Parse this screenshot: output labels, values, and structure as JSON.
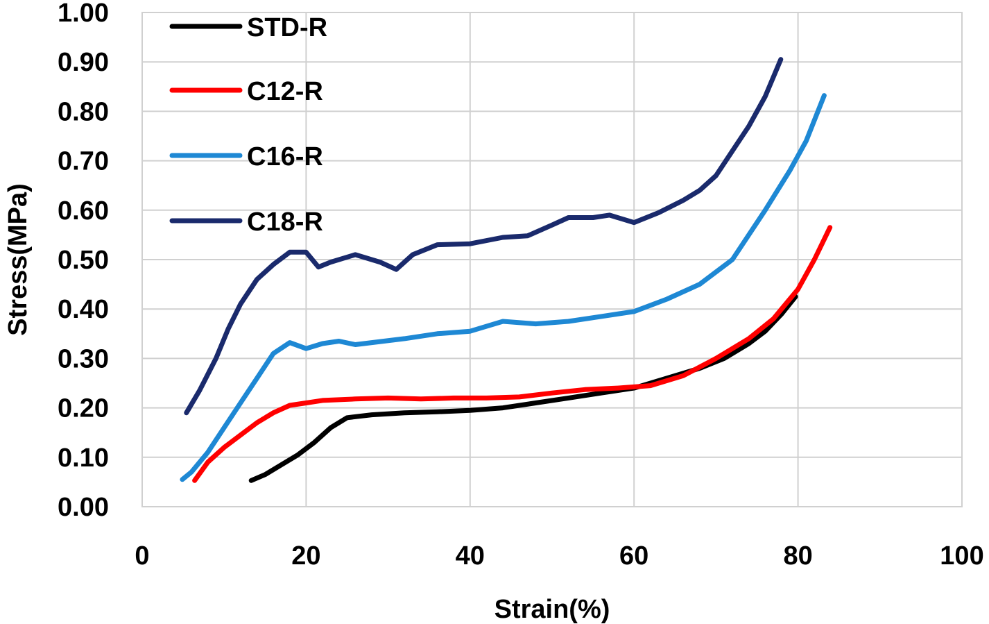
{
  "chart_data": {
    "type": "line",
    "title": "",
    "xlabel": "Strain(%)",
    "ylabel": "Stress(MPa)",
    "xlim": [
      0,
      100
    ],
    "ylim": [
      0,
      1.0
    ],
    "xticks": [
      0,
      20,
      40,
      60,
      80,
      100
    ],
    "xtick_labels": [
      "0",
      "20",
      "40",
      "60",
      "80",
      "100"
    ],
    "yticks": [
      0,
      0.1,
      0.2,
      0.3,
      0.4,
      0.5,
      0.6,
      0.7,
      0.8,
      0.9,
      1.0
    ],
    "ytick_labels": [
      "0.00",
      "0.10",
      "0.20",
      "0.30",
      "0.40",
      "0.50",
      "0.60",
      "0.70",
      "0.80",
      "0.90",
      "1.00"
    ],
    "grid": true,
    "legend_position": "top-left",
    "series": [
      {
        "name": "STD-R",
        "color": "#000000",
        "x": [
          13.3,
          15,
          17,
          19,
          21,
          23,
          25,
          28,
          32,
          36,
          40,
          44,
          48,
          52,
          56,
          60,
          64,
          68,
          71,
          74,
          76,
          78,
          79.7
        ],
        "y": [
          0.053,
          0.065,
          0.085,
          0.105,
          0.13,
          0.16,
          0.18,
          0.186,
          0.19,
          0.192,
          0.195,
          0.2,
          0.21,
          0.22,
          0.23,
          0.24,
          0.26,
          0.28,
          0.3,
          0.33,
          0.355,
          0.39,
          0.425
        ]
      },
      {
        "name": "C12-R",
        "color": "#ff0000",
        "x": [
          6.4,
          8,
          10,
          12,
          14,
          16,
          18,
          20,
          22,
          26,
          30,
          34,
          38,
          42,
          46,
          50,
          54,
          58,
          62,
          66,
          70,
          74,
          77,
          80,
          82,
          83.9
        ],
        "y": [
          0.053,
          0.09,
          0.12,
          0.145,
          0.17,
          0.19,
          0.205,
          0.21,
          0.215,
          0.218,
          0.22,
          0.218,
          0.22,
          0.22,
          0.222,
          0.23,
          0.237,
          0.24,
          0.245,
          0.265,
          0.3,
          0.34,
          0.38,
          0.44,
          0.5,
          0.565
        ]
      },
      {
        "name": "C16-R",
        "color": "#1e88d4",
        "x": [
          4.9,
          6,
          8,
          10,
          12,
          14,
          16,
          18,
          20,
          22,
          24,
          26,
          28,
          32,
          36,
          40,
          44,
          48,
          52,
          56,
          60,
          64,
          68,
          72,
          76,
          79,
          81,
          83.2
        ],
        "y": [
          0.055,
          0.07,
          0.11,
          0.16,
          0.21,
          0.26,
          0.31,
          0.332,
          0.32,
          0.33,
          0.335,
          0.328,
          0.332,
          0.34,
          0.35,
          0.355,
          0.375,
          0.37,
          0.375,
          0.385,
          0.395,
          0.42,
          0.45,
          0.5,
          0.6,
          0.68,
          0.74,
          0.832
        ]
      },
      {
        "name": "C18-R",
        "color": "#1a2a6c",
        "x": [
          5.4,
          7,
          9,
          10.5,
          12,
          14,
          16,
          18,
          20,
          21.5,
          23,
          26,
          29,
          31,
          33,
          36,
          40,
          44,
          47,
          50,
          52,
          55,
          57,
          60,
          63,
          66,
          68,
          70,
          72,
          74,
          76,
          77.9
        ],
        "y": [
          0.19,
          0.235,
          0.3,
          0.36,
          0.41,
          0.46,
          0.49,
          0.515,
          0.515,
          0.485,
          0.495,
          0.51,
          0.495,
          0.48,
          0.51,
          0.53,
          0.532,
          0.545,
          0.548,
          0.57,
          0.585,
          0.585,
          0.59,
          0.575,
          0.595,
          0.62,
          0.64,
          0.67,
          0.72,
          0.77,
          0.83,
          0.905
        ]
      }
    ]
  }
}
